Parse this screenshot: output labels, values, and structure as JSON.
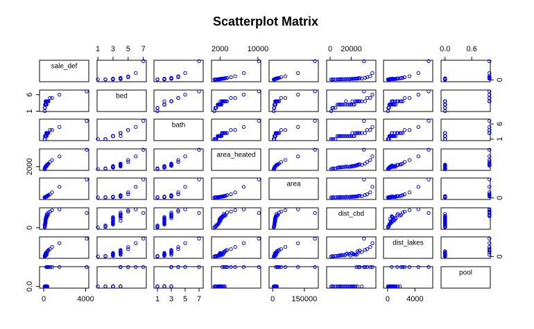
{
  "chart_data": {
    "type": "scatter-matrix",
    "title": "Scatterplot Matrix",
    "color": "#0000ff",
    "variables": [
      {
        "name": "sale_def",
        "lim": [
          -400,
          4300
        ],
        "xticks": [
          0,
          4000
        ],
        "yticks": [
          0
        ],
        "values": [
          120,
          150,
          180,
          90,
          200,
          250,
          300,
          140,
          160,
          110,
          220,
          400,
          600,
          350,
          130,
          170,
          190,
          260,
          800,
          1500,
          4100,
          210,
          240,
          100,
          95,
          320,
          450,
          280,
          175,
          155
        ]
      },
      {
        "name": "bed",
        "lim": [
          0.9,
          7.4
        ],
        "xticks": [
          1,
          3,
          5,
          7
        ],
        "yticks": [
          1,
          6
        ],
        "values": [
          3,
          3,
          4,
          2,
          3,
          4,
          4,
          3,
          3,
          2,
          3,
          4,
          5,
          4,
          3,
          3,
          3,
          4,
          5,
          6,
          7,
          3,
          4,
          2,
          1,
          4,
          4,
          3,
          3,
          3
        ]
      },
      {
        "name": "bath",
        "lim": [
          0.5,
          7.6
        ],
        "xticks": [
          1,
          3,
          5,
          7
        ],
        "yticks": [
          1,
          6
        ],
        "values": [
          2,
          2,
          2,
          1,
          2,
          3,
          3,
          2,
          2,
          1,
          2,
          3,
          4,
          3,
          2,
          2,
          2,
          3,
          4,
          5,
          7,
          2,
          3,
          1,
          1,
          3,
          3,
          2,
          2,
          2
        ]
      },
      {
        "name": "area_heated",
        "lim": [
          200,
          10600
        ],
        "xticks": [
          2000,
          10000
        ],
        "yticks": [
          2000
        ],
        "values": [
          1600,
          1800,
          2100,
          1100,
          2000,
          2500,
          2800,
          1700,
          1900,
          1200,
          2200,
          3200,
          4300,
          3000,
          1500,
          1850,
          1950,
          2600,
          5200,
          7000,
          10200,
          2050,
          2400,
          1000,
          800,
          2900,
          3500,
          2300,
          1750,
          1650
        ]
      },
      {
        "name": "area",
        "lim": [
          -17000,
          216000
        ],
        "xticks": [
          0,
          150000
        ],
        "yticks": [
          0
        ],
        "values": [
          9000,
          10000,
          12000,
          7000,
          11000,
          15000,
          18000,
          9500,
          10500,
          8000,
          13000,
          25000,
          40000,
          20000,
          8500,
          9800,
          11500,
          16000,
          60000,
          120000,
          200000,
          12500,
          14000,
          6000,
          5000,
          22000,
          30000,
          13500,
          9200,
          8800
        ]
      },
      {
        "name": "dist_cbd",
        "lim": [
          -3300,
          43300
        ],
        "xticks": [
          0,
          20000
        ],
        "yticks": [
          0
        ],
        "values": [
          8000,
          12000,
          15000,
          5000,
          20000,
          25000,
          30000,
          10000,
          18000,
          3000,
          22000,
          28000,
          35000,
          26000,
          7000,
          14000,
          16000,
          24000,
          38000,
          40000,
          32000,
          19000,
          21000,
          2000,
          1000,
          27000,
          33000,
          23000,
          11000,
          9000
        ]
      },
      {
        "name": "dist_lakes",
        "lim": [
          -600,
          6600
        ],
        "xticks": [
          0,
          4000
        ],
        "yticks": [
          0
        ],
        "values": [
          300,
          500,
          800,
          200,
          1200,
          600,
          1500,
          400,
          900,
          100,
          700,
          2000,
          2500,
          1800,
          250,
          450,
          1000,
          650,
          3200,
          4500,
          6000,
          350,
          1100,
          150,
          50,
          1400,
          2200,
          750,
          550,
          380
        ]
      },
      {
        "name": "pool",
        "lim": [
          -0.09,
          1.02
        ],
        "xticks": [
          {
            "value": 0,
            "label": "0.0"
          },
          {
            "value": 0.6,
            "label": "0.6"
          }
        ],
        "yticks": [
          {
            "value": 0,
            "label": "0.0"
          }
        ],
        "values": [
          0,
          0,
          0,
          0,
          0,
          1,
          0,
          0,
          0,
          0,
          0,
          1,
          1,
          0,
          0,
          0,
          0,
          0,
          1,
          1,
          1,
          0,
          0,
          0,
          0,
          1,
          1,
          0,
          0,
          0
        ]
      }
    ]
  }
}
